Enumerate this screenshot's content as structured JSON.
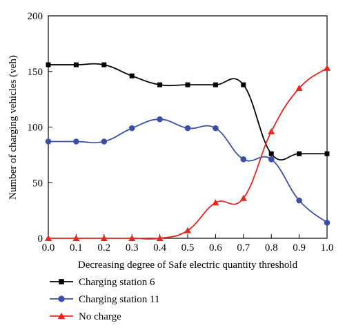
{
  "chart_data": {
    "type": "line",
    "xlabel": "Decreasing degree of Safe electric quantity threshold",
    "ylabel": "Number of charging vehicles (veh)",
    "xlim": [
      0.0,
      1.0
    ],
    "ylim": [
      0,
      200
    ],
    "xticks": [
      "0.0",
      "0.1",
      "0.2",
      "0.3",
      "0.4",
      "0.5",
      "0.6",
      "0.7",
      "0.8",
      "0.9",
      "1.0"
    ],
    "yticks": [
      "0",
      "50",
      "100",
      "150",
      "200"
    ],
    "x": [
      0.0,
      0.1,
      0.2,
      0.3,
      0.4,
      0.5,
      0.6,
      0.7,
      0.8,
      0.9,
      1.0
    ],
    "legend_position": "bottom",
    "grid": false,
    "series": [
      {
        "name": "Charging station 6",
        "color": "#000000",
        "marker": "square",
        "values": [
          156,
          156,
          156,
          146,
          138,
          138,
          138,
          138,
          76,
          76,
          76
        ]
      },
      {
        "name": "Charging station 11",
        "color": "#3b4fa8",
        "marker": "circle",
        "values": [
          87,
          87,
          87,
          99,
          107,
          99,
          99,
          71,
          71,
          34,
          14
        ]
      },
      {
        "name": "No charge",
        "color": "#e8251f",
        "marker": "triangle",
        "values": [
          0,
          0,
          0,
          0,
          0,
          7,
          32,
          36,
          96,
          135,
          153
        ]
      }
    ]
  }
}
